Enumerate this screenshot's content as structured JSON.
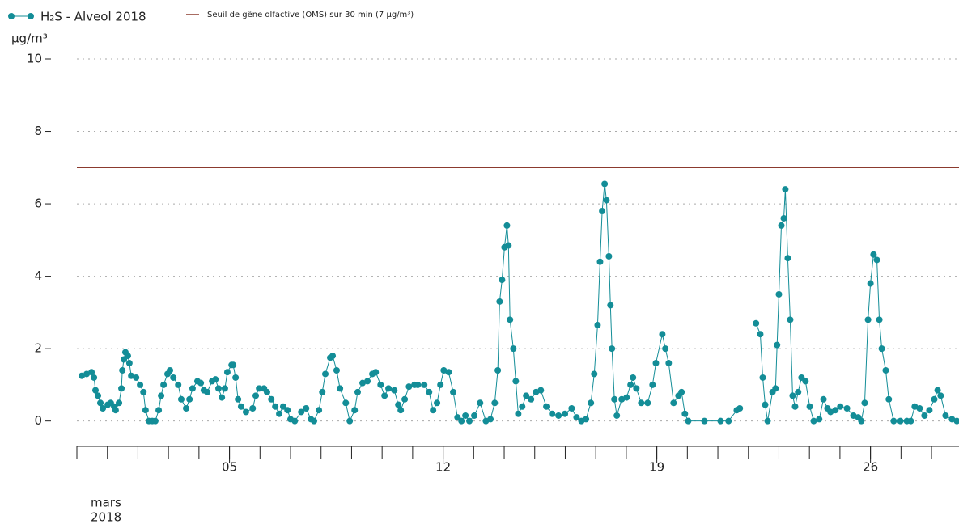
{
  "chart_data": {
    "type": "line",
    "y_label": "µg/m³",
    "date_label": [
      "mars",
      "2018"
    ],
    "xlim": [
      0,
      28.9
    ],
    "xticks": [
      {
        "value": 5,
        "label": "05"
      },
      {
        "value": 12,
        "label": "12"
      },
      {
        "value": 19,
        "label": "19"
      },
      {
        "value": 26,
        "label": "26"
      }
    ],
    "xminorticks": [
      0,
      1,
      2,
      3,
      4,
      5,
      6,
      7,
      8,
      9,
      10,
      11,
      12,
      13,
      14,
      15,
      16,
      17,
      18,
      19,
      20,
      21,
      22,
      23,
      24,
      25,
      26,
      27,
      28
    ],
    "ylim": [
      -0.7,
      10
    ],
    "yticks": [
      0,
      2,
      4,
      6,
      8,
      10
    ],
    "grid": true,
    "hlines": [
      {
        "name": "Seuil de gêne olfactive (OMS) sur 30 min (7 µg/m³)",
        "value": 7,
        "color": "#8b3a2e"
      }
    ],
    "x": [
      0.16,
      0.32,
      0.48,
      0.56,
      0.61,
      0.69,
      0.77,
      0.85,
      1.01,
      1.11,
      1.22,
      1.27,
      1.38,
      1.46,
      1.49,
      1.54,
      1.59,
      1.67,
      1.72,
      1.78,
      1.94,
      2.07,
      2.18,
      2.25,
      2.36,
      2.47,
      2.57,
      2.68,
      2.76,
      2.84,
      2.97,
      3.05,
      3.16,
      3.32,
      3.42,
      3.58,
      3.69,
      3.79,
      3.95,
      4.06,
      4.16,
      4.27,
      4.43,
      4.54,
      4.64,
      4.75,
      4.85,
      4.93,
      5.07,
      5.12,
      5.2,
      5.28,
      5.38,
      5.54,
      5.76,
      5.86,
      5.97,
      6.13,
      6.23,
      6.37,
      6.5,
      6.63,
      6.76,
      6.9,
      7.0,
      7.14,
      7.35,
      7.51,
      7.67,
      7.77,
      7.93,
      8.04,
      8.14,
      8.3,
      8.38,
      8.51,
      8.62,
      8.81,
      8.94,
      9.1,
      9.2,
      9.36,
      9.52,
      9.68,
      9.79,
      9.95,
      10.08,
      10.21,
      10.4,
      10.53,
      10.61,
      10.74,
      10.88,
      11.06,
      11.17,
      11.38,
      11.54,
      11.67,
      11.8,
      11.91,
      12.02,
      12.18,
      12.33,
      12.47,
      12.6,
      12.73,
      12.86,
      13.02,
      13.21,
      13.4,
      13.55,
      13.69,
      13.79,
      13.85,
      13.93,
      14.01,
      14.09,
      14.14,
      14.19,
      14.3,
      14.38,
      14.46,
      14.59,
      14.72,
      14.88,
      15.04,
      15.2,
      15.38,
      15.57,
      15.78,
      15.99,
      16.21,
      16.37,
      16.53,
      16.68,
      16.84,
      16.95,
      17.06,
      17.14,
      17.21,
      17.29,
      17.35,
      17.43,
      17.48,
      17.53,
      17.61,
      17.69,
      17.85,
      18.01,
      18.14,
      18.22,
      18.33,
      18.49,
      18.7,
      18.86,
      18.97,
      19.18,
      19.28,
      19.39,
      19.55,
      19.71,
      19.81,
      19.92,
      20.03,
      20.56,
      21.09,
      21.35,
      21.62,
      21.72,
      21.96,
      22.25,
      22.39,
      22.47,
      22.55,
      22.63,
      22.79,
      22.89,
      22.94,
      23.0,
      23.08,
      23.16,
      23.21,
      23.29,
      23.37,
      23.45,
      23.53,
      23.63,
      23.74,
      23.87,
      24.01,
      24.14,
      24.32,
      24.46,
      24.59,
      24.69,
      24.85,
      25.01,
      25.23,
      25.44,
      25.6,
      25.7,
      25.81,
      25.92,
      26.0,
      26.1,
      26.21,
      26.29,
      26.37,
      26.5,
      26.6,
      26.76,
      26.98,
      27.19,
      27.32,
      27.45,
      27.61,
      27.77,
      27.93,
      28.09,
      28.2,
      28.3,
      28.46,
      28.67,
      28.83
    ],
    "series": [
      {
        "name": "H₂S - Alveol 2018",
        "color": "#138d97",
        "values": [
          1.25,
          1.3,
          1.35,
          1.2,
          0.85,
          0.7,
          0.5,
          0.35,
          0.45,
          0.5,
          0.4,
          0.3,
          0.5,
          0.9,
          1.4,
          1.7,
          1.9,
          1.8,
          1.6,
          1.25,
          1.2,
          1.0,
          0.8,
          0.3,
          0.0,
          0.0,
          0.0,
          0.3,
          0.7,
          1.0,
          1.3,
          1.4,
          1.2,
          1.0,
          0.6,
          0.35,
          0.6,
          0.9,
          1.1,
          1.05,
          0.85,
          0.8,
          1.1,
          1.15,
          0.9,
          0.65,
          0.9,
          1.35,
          1.55,
          1.55,
          1.2,
          0.6,
          0.4,
          0.25,
          0.35,
          0.7,
          0.9,
          0.9,
          0.8,
          0.6,
          0.4,
          0.2,
          0.4,
          0.3,
          0.05,
          0.0,
          0.25,
          0.35,
          0.05,
          0.0,
          0.3,
          0.8,
          1.3,
          1.75,
          1.8,
          1.4,
          0.9,
          0.5,
          0.0,
          0.3,
          0.8,
          1.05,
          1.1,
          1.3,
          1.35,
          1.0,
          0.7,
          0.9,
          0.85,
          0.45,
          0.3,
          0.6,
          0.95,
          1.0,
          1.0,
          1.0,
          0.8,
          0.3,
          0.5,
          1.0,
          1.4,
          1.35,
          0.8,
          0.1,
          0.0,
          0.15,
          0.0,
          0.15,
          0.5,
          0.0,
          0.05,
          0.5,
          1.4,
          3.3,
          3.9,
          4.8,
          5.4,
          4.85,
          2.8,
          2.0,
          1.1,
          0.2,
          0.4,
          0.7,
          0.6,
          0.8,
          0.85,
          0.4,
          0.2,
          0.15,
          0.2,
          0.35,
          0.1,
          0.0,
          0.05,
          0.5,
          1.3,
          2.65,
          4.4,
          5.8,
          6.55,
          6.1,
          4.55,
          3.2,
          2.0,
          0.6,
          0.15,
          0.6,
          0.65,
          1.0,
          1.2,
          0.9,
          0.5,
          0.5,
          1.0,
          1.6,
          2.4,
          2.0,
          1.6,
          0.5,
          0.7,
          0.8,
          0.2,
          0.0,
          0.0,
          0.0,
          0.0,
          0.3,
          0.35,
          null,
          2.7,
          2.4,
          1.2,
          0.45,
          0.0,
          0.8,
          0.9,
          2.1,
          3.5,
          5.4,
          5.6,
          6.4,
          4.5,
          2.8,
          0.7,
          0.4,
          0.8,
          1.2,
          1.1,
          0.4,
          0.0,
          0.05,
          0.6,
          0.35,
          0.25,
          0.3,
          0.4,
          0.35,
          0.15,
          0.1,
          0.0,
          0.5,
          2.8,
          3.8,
          4.6,
          4.45,
          2.8,
          2.0,
          1.4,
          0.6,
          0.0,
          0.0,
          0.0,
          0.0,
          0.4,
          0.35,
          0.15,
          0.3,
          0.6,
          0.85,
          0.7,
          0.15,
          0.05,
          0.0
        ]
      }
    ]
  }
}
